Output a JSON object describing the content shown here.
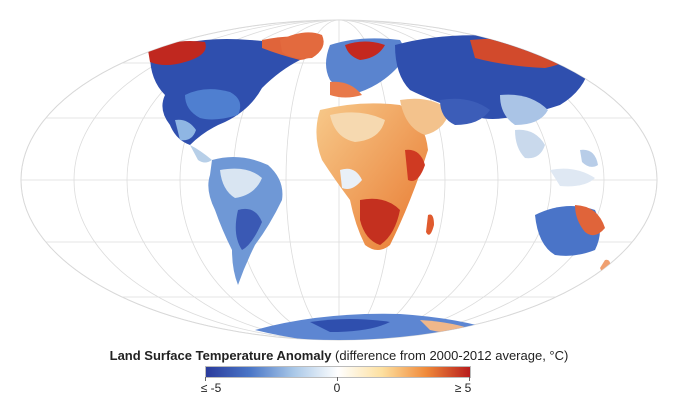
{
  "legend": {
    "title_bold": "Land Surface Temperature Anomaly",
    "title_rest": " (difference from 2000-2012 average, °C)",
    "tick_min": "≤ -5",
    "tick_mid": "0",
    "tick_max": "≥ 5",
    "colors": [
      "#2a3b9c",
      "#4a76c7",
      "#a9c8e8",
      "#ffffff",
      "#fde0a0",
      "#f08a3a",
      "#b81d1d"
    ]
  },
  "map": {
    "projection": "Mollweide-like",
    "graticule": true
  }
}
